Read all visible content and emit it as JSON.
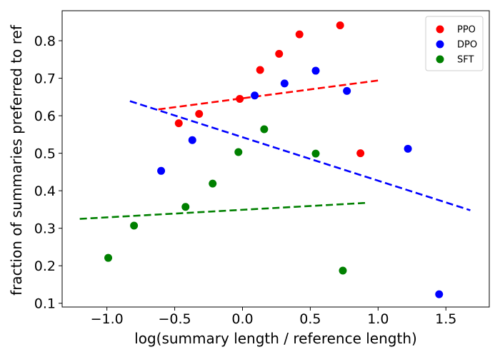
{
  "chart_data": {
    "type": "scatter",
    "title": "",
    "xlabel": "log(summary length / reference length)",
    "ylabel": "fraction of summaries preferred to ref",
    "xlim": [
      -1.33,
      1.82
    ],
    "ylim": [
      0.09,
      0.88
    ],
    "xticks": [
      -1.0,
      -0.5,
      0.0,
      0.5,
      1.0,
      1.5
    ],
    "xtick_labels": [
      "−1.0",
      "−0.5",
      "0.0",
      "0.5",
      "1.0",
      "1.5"
    ],
    "yticks": [
      0.1,
      0.2,
      0.3,
      0.4,
      0.5,
      0.6,
      0.7,
      0.8
    ],
    "ytick_labels": [
      "0.1",
      "0.2",
      "0.3",
      "0.4",
      "0.5",
      "0.6",
      "0.7",
      "0.8"
    ],
    "grid": false,
    "legend_position": "top-right",
    "series": [
      {
        "name": "PPO",
        "color": "#ff0000",
        "points": [
          [
            -0.47,
            0.58
          ],
          [
            -0.32,
            0.605
          ],
          [
            -0.02,
            0.645
          ],
          [
            0.13,
            0.722
          ],
          [
            0.27,
            0.765
          ],
          [
            0.42,
            0.817
          ],
          [
            0.72,
            0.841
          ],
          [
            0.87,
            0.5
          ]
        ],
        "trend": [
          [
            -0.62,
            0.617
          ],
          [
            1.0,
            0.694
          ]
        ]
      },
      {
        "name": "DPO",
        "color": "#0000ff",
        "points": [
          [
            -0.6,
            0.453
          ],
          [
            -0.37,
            0.535
          ],
          [
            0.09,
            0.654
          ],
          [
            0.31,
            0.686
          ],
          [
            0.54,
            0.72
          ],
          [
            0.77,
            0.666
          ],
          [
            1.22,
            0.512
          ],
          [
            1.45,
            0.124
          ]
        ],
        "trend": [
          [
            -0.83,
            0.639
          ],
          [
            1.68,
            0.348
          ]
        ]
      },
      {
        "name": "SFT",
        "color": "#008000",
        "points": [
          [
            -0.99,
            0.221
          ],
          [
            -0.8,
            0.307
          ],
          [
            -0.42,
            0.357
          ],
          [
            -0.22,
            0.419
          ],
          [
            -0.03,
            0.503
          ],
          [
            0.16,
            0.564
          ],
          [
            0.54,
            0.499
          ],
          [
            0.74,
            0.187
          ]
        ],
        "trend": [
          [
            -1.2,
            0.325
          ],
          [
            0.93,
            0.368
          ]
        ]
      }
    ]
  }
}
